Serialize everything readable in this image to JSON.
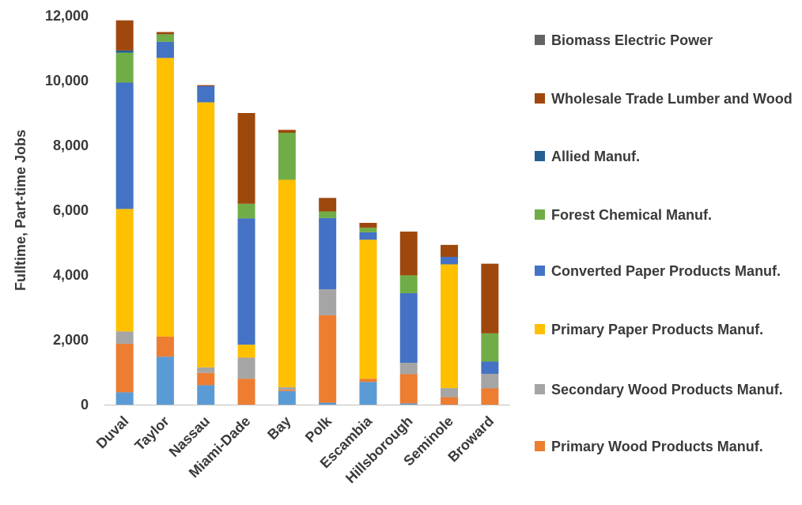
{
  "chart_data": {
    "type": "bar",
    "stacked": true,
    "ylabel": "Fulltime, Part-time Jobs",
    "xlabel": "",
    "ylim": [
      0,
      12000
    ],
    "yticks": [
      0,
      2000,
      4000,
      6000,
      8000,
      10000,
      12000
    ],
    "ytick_labels": [
      "0",
      "2,000",
      "4,000",
      "6,000",
      "8,000",
      "10,000",
      "12,000"
    ],
    "grid": false,
    "legend_position": "right",
    "categories": [
      "Duval",
      "Taylor",
      "Nassau",
      "Miami-Dade",
      "Bay",
      "Polk",
      "Escambia",
      "Hillsborough",
      "Seminole",
      "Broward"
    ],
    "series": [
      {
        "name": "",
        "color": "#5B9BD5",
        "values": [
          380,
          1480,
          600,
          0,
          420,
          60,
          700,
          40,
          0,
          0
        ]
      },
      {
        "name": "Primary Wood Products Manuf.",
        "color": "#ED7D31",
        "values": [
          1500,
          620,
          380,
          800,
          40,
          2700,
          100,
          900,
          230,
          500
        ]
      },
      {
        "name": "Secondary Wood Products Manuf.",
        "color": "#A5A5A5",
        "values": [
          380,
          0,
          170,
          650,
          80,
          800,
          0,
          350,
          280,
          450
        ]
      },
      {
        "name": "Primary Paper Products Manuf.",
        "color": "#FFC000",
        "values": [
          3780,
          8600,
          8180,
          400,
          6400,
          0,
          4290,
          0,
          3820,
          0
        ]
      },
      {
        "name": "Converted Paper Products Manuf.",
        "color": "#4472C4",
        "values": [
          3900,
          500,
          500,
          3900,
          0,
          2200,
          230,
          2150,
          230,
          380
        ]
      },
      {
        "name": "Forest Chemical Manuf.",
        "color": "#70AD47",
        "values": [
          920,
          230,
          0,
          450,
          1450,
          200,
          140,
          550,
          0,
          870
        ]
      },
      {
        "name": "Allied Manuf.",
        "color": "#255E91",
        "values": [
          70,
          0,
          0,
          0,
          0,
          0,
          0,
          0,
          0,
          0
        ]
      },
      {
        "name": "Wholesale Trade Lumber and Wood",
        "color": "#9E480E",
        "values": [
          930,
          70,
          30,
          2800,
          90,
          420,
          150,
          1350,
          370,
          2150
        ]
      },
      {
        "name": "Biomass Electric Power",
        "color": "#636363",
        "values": [
          0,
          0,
          0,
          0,
          0,
          0,
          0,
          0,
          0,
          0
        ]
      }
    ]
  }
}
